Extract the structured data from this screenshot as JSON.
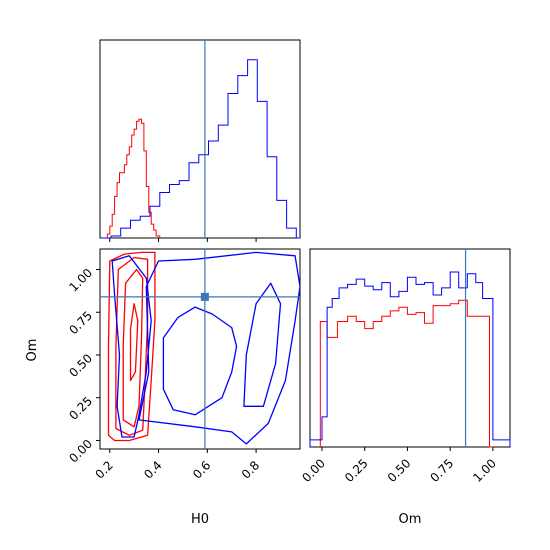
{
  "chart_data": [
    {
      "type": "histogram",
      "panel": "H0 marginal",
      "xlim": [
        0.16,
        0.98
      ],
      "truth": 0.59,
      "series": [
        {
          "color": "#ff0000",
          "edges": [
            0.165,
            0.19,
            0.2,
            0.21,
            0.22,
            0.23,
            0.24,
            0.25,
            0.26,
            0.27,
            0.28,
            0.29,
            0.3,
            0.31,
            0.32,
            0.33,
            0.34,
            0.35,
            0.36,
            0.37,
            0.38,
            0.39,
            0.405
          ],
          "values": [
            0,
            0.02,
            0.06,
            0.12,
            0.21,
            0.28,
            0.33,
            0.33,
            0.37,
            0.42,
            0.46,
            0.52,
            0.55,
            0.59,
            0.6,
            0.58,
            0.44,
            0.26,
            0.13,
            0.07,
            0.04,
            0.01
          ]
        },
        {
          "color": "#0000ff",
          "edges": [
            0.165,
            0.205,
            0.245,
            0.285,
            0.325,
            0.365,
            0.405,
            0.445,
            0.485,
            0.525,
            0.565,
            0.605,
            0.645,
            0.685,
            0.725,
            0.765,
            0.805,
            0.845,
            0.885,
            0.925,
            0.965,
            0.98
          ],
          "values": [
            0,
            0.01,
            0.05,
            0.09,
            0.11,
            0.16,
            0.23,
            0.27,
            0.29,
            0.38,
            0.42,
            0.49,
            0.57,
            0.73,
            0.82,
            0.9,
            0.69,
            0.41,
            0.19,
            0.05,
            0.0
          ]
        }
      ]
    },
    {
      "type": "contour",
      "panel": "H0 vs Om",
      "xlabel": "H0",
      "ylabel": "Om",
      "xlim": [
        0.16,
        0.98
      ],
      "ylim": [
        -0.05,
        1.12
      ],
      "xticks": [
        "0.2",
        "0.4",
        "0.6",
        "0.8"
      ],
      "yticks": [
        "0.00",
        "0.25",
        "0.50",
        "0.75",
        "1.00"
      ],
      "truth": [
        0.59,
        0.84
      ],
      "series": [
        {
          "color": "#ff0000",
          "label": "",
          "contours": [
            [
              [
                0.195,
                0.03
              ],
              [
                0.195,
                0.55
              ],
              [
                0.2,
                1.05
              ],
              [
                0.26,
                1.09
              ],
              [
                0.33,
                1.1
              ],
              [
                0.385,
                1.1
              ],
              [
                0.385,
                0.7
              ],
              [
                0.37,
                0.35
              ],
              [
                0.355,
                0.03
              ],
              [
                0.28,
                0.0
              ],
              [
                0.22,
                0.0
              ]
            ],
            [
              [
                0.225,
                0.07
              ],
              [
                0.225,
                0.55
              ],
              [
                0.235,
                1.0
              ],
              [
                0.3,
                1.07
              ],
              [
                0.355,
                1.06
              ],
              [
                0.355,
                0.7
              ],
              [
                0.345,
                0.35
              ],
              [
                0.335,
                0.06
              ],
              [
                0.28,
                0.03
              ]
            ],
            [
              [
                0.255,
                0.12
              ],
              [
                0.255,
                0.55
              ],
              [
                0.265,
                0.92
              ],
              [
                0.31,
                1.0
              ],
              [
                0.335,
                0.95
              ],
              [
                0.33,
                0.6
              ],
              [
                0.32,
                0.2
              ],
              [
                0.3,
                0.08
              ]
            ],
            [
              [
                0.285,
                0.35
              ],
              [
                0.285,
                0.65
              ],
              [
                0.3,
                0.8
              ],
              [
                0.315,
                0.7
              ],
              [
                0.305,
                0.4
              ]
            ]
          ]
        },
        {
          "color": "#0000ff",
          "label": "",
          "contours": [
            [
              [
                0.32,
                0.12
              ],
              [
                0.55,
                0.08
              ],
              [
                0.7,
                0.05
              ],
              [
                0.76,
                -0.02
              ],
              [
                0.85,
                0.1
              ],
              [
                0.92,
                0.35
              ],
              [
                0.96,
                0.7
              ],
              [
                0.98,
                0.9
              ],
              [
                0.96,
                1.08
              ],
              [
                0.8,
                1.1
              ],
              [
                0.55,
                1.06
              ],
              [
                0.4,
                1.05
              ],
              [
                0.35,
                0.9
              ],
              [
                0.36,
                0.4
              ]
            ],
            [
              [
                0.21,
                1.05
              ],
              [
                0.28,
                1.08
              ],
              [
                0.35,
                0.95
              ],
              [
                0.37,
                0.7
              ],
              [
                0.35,
                0.4
              ],
              [
                0.32,
                0.15
              ],
              [
                0.3,
                0.02
              ],
              [
                0.25,
                0.02
              ],
              [
                0.23,
                0.2
              ],
              [
                0.24,
                0.5
              ],
              [
                0.22,
                0.85
              ]
            ],
            [
              [
                0.42,
                0.3
              ],
              [
                0.42,
                0.6
              ],
              [
                0.48,
                0.72
              ],
              [
                0.55,
                0.78
              ],
              [
                0.62,
                0.74
              ],
              [
                0.7,
                0.66
              ],
              [
                0.72,
                0.55
              ],
              [
                0.7,
                0.4
              ],
              [
                0.66,
                0.25
              ],
              [
                0.55,
                0.15
              ],
              [
                0.46,
                0.18
              ]
            ],
            [
              [
                0.75,
                0.2
              ],
              [
                0.76,
                0.5
              ],
              [
                0.8,
                0.8
              ],
              [
                0.86,
                0.92
              ],
              [
                0.9,
                0.8
              ],
              [
                0.88,
                0.45
              ],
              [
                0.83,
                0.2
              ]
            ]
          ]
        }
      ]
    },
    {
      "type": "histogram",
      "panel": "Om marginal",
      "xlabel": "Om",
      "xlim": [
        -0.07,
        1.1
      ],
      "xticks": [
        "0.00",
        "0.25",
        "0.50",
        "0.75",
        "1.00"
      ],
      "truth": 0.84,
      "series": [
        {
          "color": "#ff0000",
          "edges": [
            -0.01,
            0.03,
            0.09,
            0.15,
            0.2,
            0.25,
            0.3,
            0.35,
            0.4,
            0.45,
            0.5,
            0.55,
            0.6,
            0.65,
            0.7,
            0.75,
            0.8,
            0.85,
            0.91,
            0.98,
            1.0
          ],
          "values": [
            0.71,
            0.62,
            0.71,
            0.74,
            0.71,
            0.67,
            0.71,
            0.74,
            0.77,
            0.79,
            0.75,
            0.76,
            0.7,
            0.8,
            0.8,
            0.81,
            0.83,
            0.74,
            0.74,
            0.0
          ]
        },
        {
          "color": "#0000ff",
          "edges": [
            -0.07,
            0.0,
            0.03,
            0.06,
            0.1,
            0.15,
            0.2,
            0.25,
            0.3,
            0.35,
            0.4,
            0.45,
            0.5,
            0.55,
            0.6,
            0.65,
            0.7,
            0.75,
            0.8,
            0.85,
            0.9,
            0.94,
            1.0,
            1.1
          ],
          "values": [
            0.04,
            0.17,
            0.79,
            0.84,
            0.9,
            0.92,
            0.95,
            0.91,
            0.89,
            0.93,
            0.85,
            0.88,
            0.96,
            0.92,
            0.93,
            0.86,
            0.9,
            0.99,
            0.9,
            0.98,
            0.93,
            0.84,
            0.04
          ]
        }
      ]
    }
  ]
}
